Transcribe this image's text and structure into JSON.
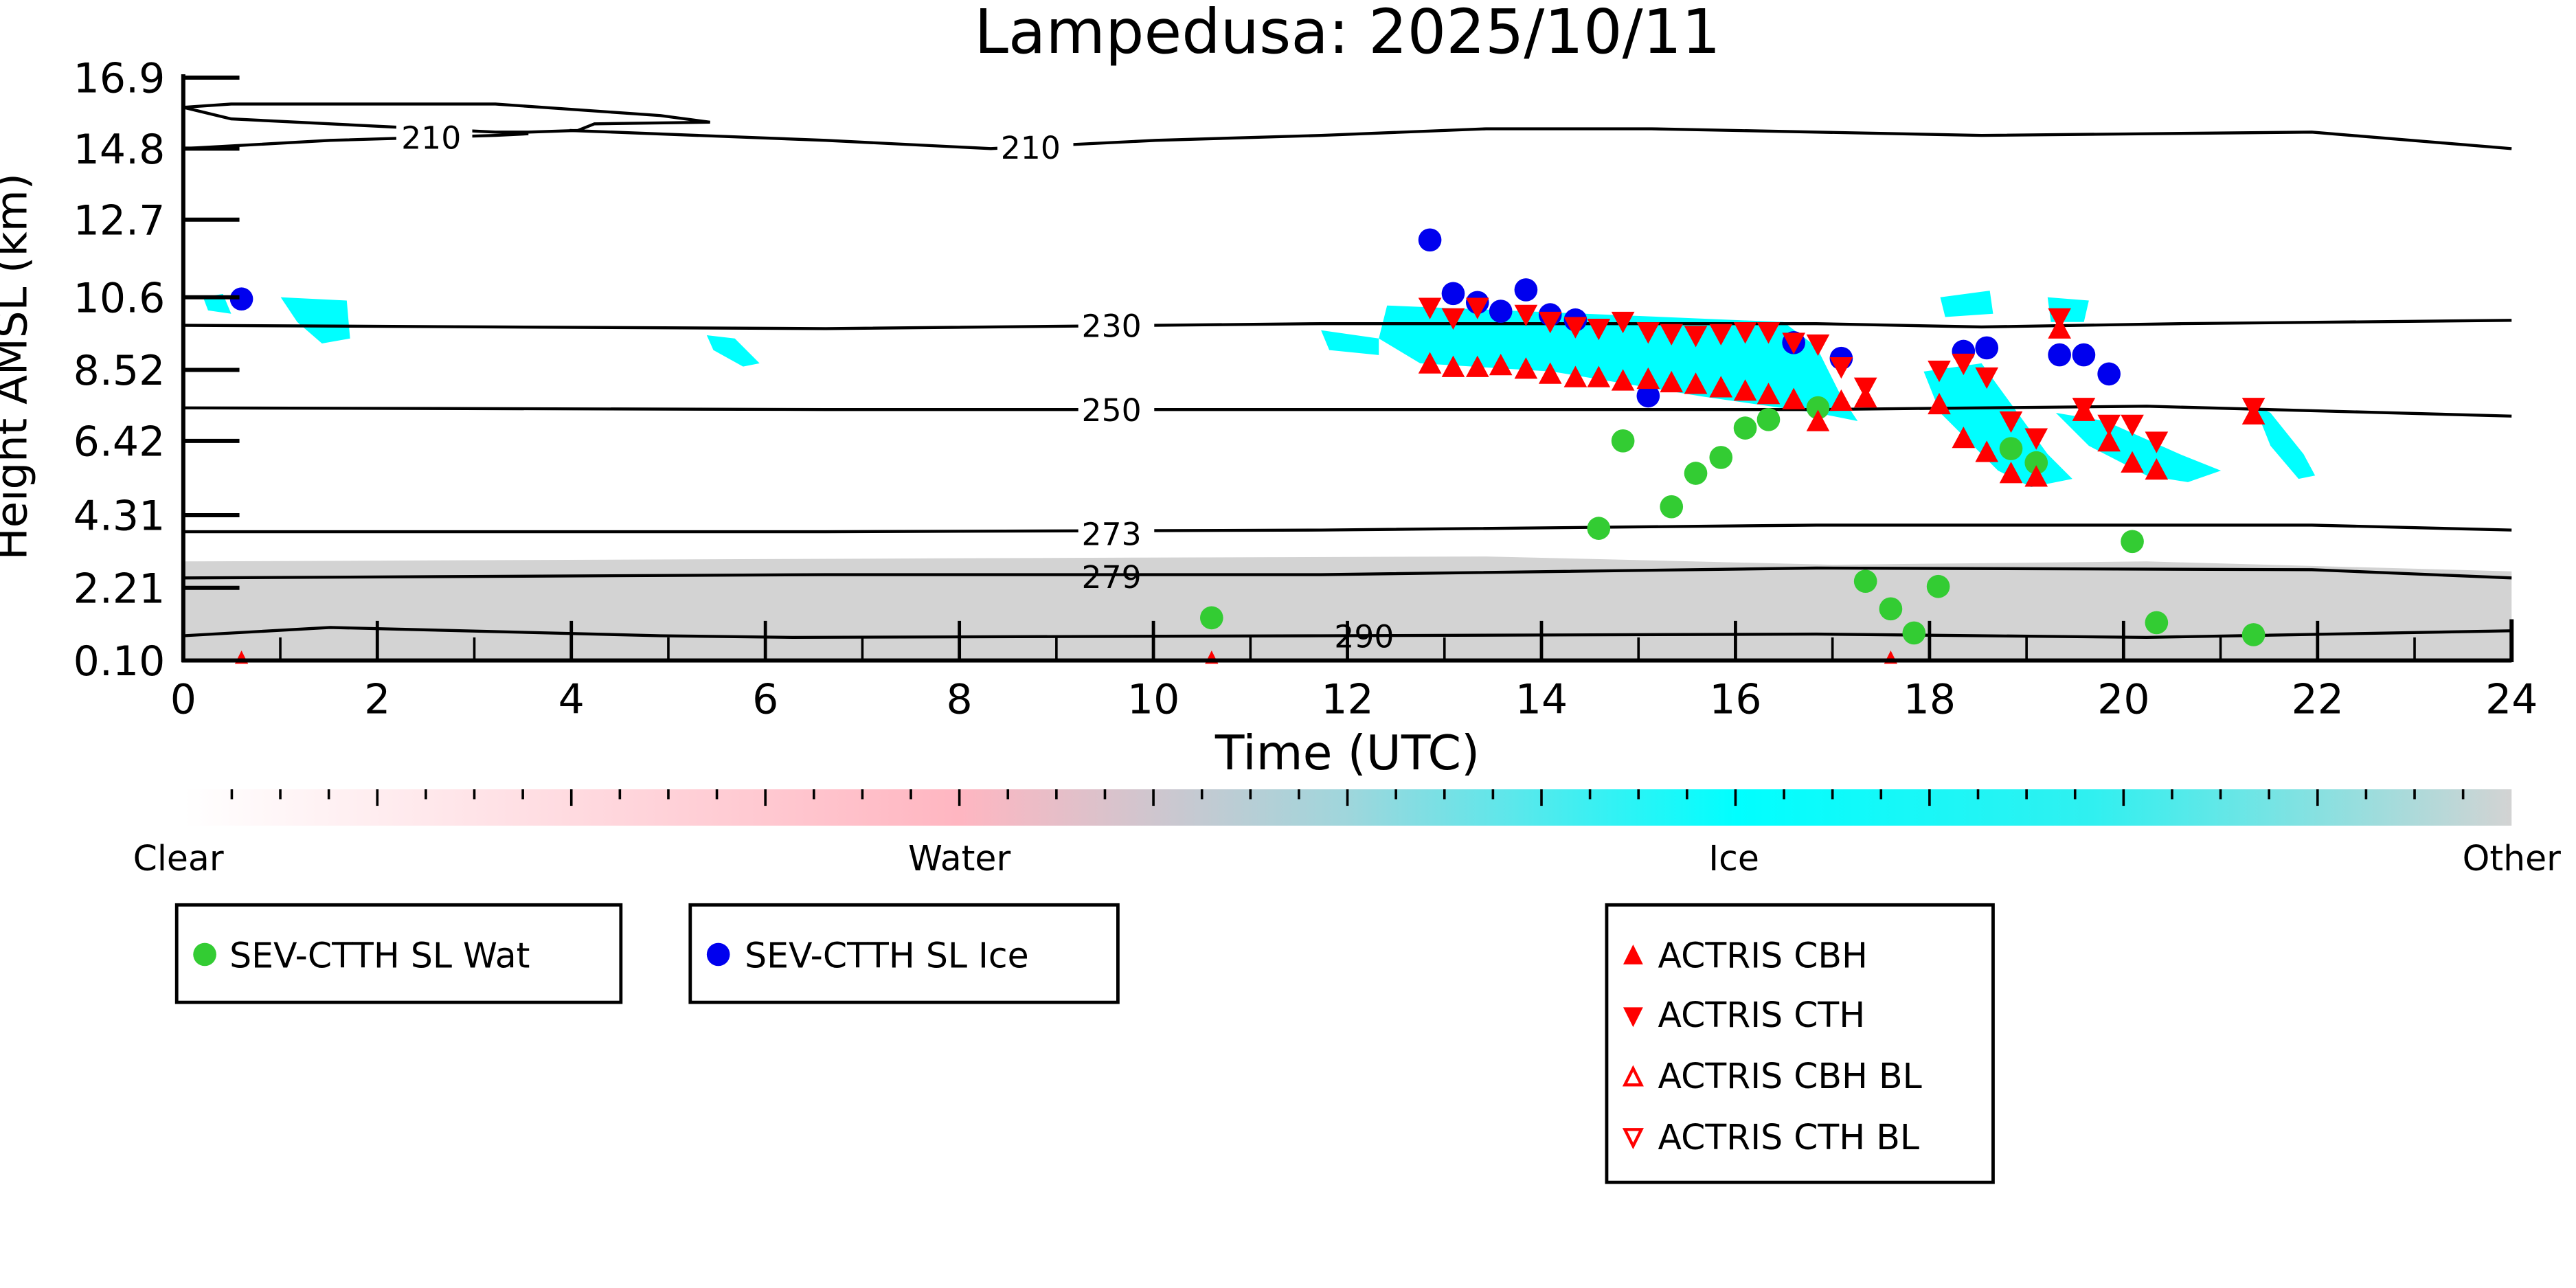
{
  "chart_data": {
    "type": "scatter",
    "title": "Lampedusa: 2025/10/11",
    "xlabel": "Time (UTC)",
    "ylabel": "Height AMSL (km)",
    "xlim": [
      0,
      24
    ],
    "xticks": [
      "0",
      "2",
      "4",
      "6",
      "8",
      "10",
      "12",
      "14",
      "16",
      "18",
      "20",
      "22",
      "24"
    ],
    "yticks": [
      "16.9",
      "14.8",
      "12.7",
      "10.6",
      "8.52",
      "6.42",
      "4.31",
      "2.21",
      "0.10"
    ],
    "ytick_values": [
      16.9,
      14.8,
      12.7,
      10.6,
      8.52,
      6.42,
      4.31,
      2.21,
      0.1
    ],
    "contour_labels": [
      "210",
      "210",
      "230",
      "250",
      "273",
      "279",
      "290"
    ],
    "colorbar": {
      "labels": [
        "Clear",
        "Water",
        "Ice",
        "Other"
      ],
      "colors": [
        "#ffffff",
        "#ffb6c1",
        "#00ffff",
        "#d3d3d3"
      ]
    },
    "series": [
      {
        "name": "SEV-CTTH SL Wat",
        "marker": "circle",
        "color": "#33cc33",
        "x": [
          10.6,
          14.59,
          14.84,
          15.34,
          15.59,
          15.85,
          16.1,
          16.34,
          16.85,
          17.34,
          17.6,
          17.84,
          18.09,
          18.84,
          19.1,
          20.09,
          20.34,
          21.34
        ],
        "y": [
          1.34,
          3.93,
          6.42,
          4.55,
          5.5,
          5.95,
          6.8,
          7.05,
          7.4,
          2.4,
          1.6,
          0.9,
          2.25,
          6.2,
          5.8,
          3.55,
          1.2,
          0.85
        ]
      },
      {
        "name": "SEV-CTTH SL Ice",
        "marker": "circle",
        "color": "#0000ee",
        "x": [
          0.6,
          12.85,
          13.09,
          13.34,
          13.58,
          13.84,
          14.09,
          14.35,
          15.1,
          16.6,
          17.09,
          18.35,
          18.59,
          19.34,
          19.59,
          19.85
        ],
        "y": [
          10.55,
          12.15,
          10.7,
          10.45,
          10.2,
          10.8,
          10.1,
          9.95,
          7.75,
          9.3,
          8.85,
          9.05,
          9.15,
          8.95,
          8.95,
          8.4
        ]
      },
      {
        "name": "ACTRIS CBH",
        "marker": "triangle-up",
        "color": "#ff0000",
        "x": [
          12.85,
          13.09,
          13.34,
          13.58,
          13.84,
          14.09,
          14.35,
          14.59,
          14.84,
          15.1,
          15.34,
          15.59,
          15.85,
          16.1,
          16.34,
          16.6,
          16.85,
          17.09,
          17.34,
          18.1,
          18.35,
          18.59,
          18.84,
          19.1,
          19.34,
          19.59,
          19.85,
          20.09,
          20.34,
          21.34
        ],
        "y": [
          8.7,
          8.6,
          8.6,
          8.65,
          8.55,
          8.4,
          8.3,
          8.3,
          8.2,
          8.25,
          8.15,
          8.1,
          8.0,
          7.9,
          7.8,
          7.65,
          7.0,
          7.6,
          7.7,
          7.5,
          6.5,
          6.1,
          5.5,
          5.4,
          9.7,
          7.3,
          6.4,
          5.8,
          5.6,
          7.2
        ]
      },
      {
        "name": "ACTRIS CTH",
        "marker": "triangle-down",
        "color": "#ff0000",
        "x": [
          12.85,
          13.09,
          13.34,
          13.84,
          14.09,
          14.35,
          14.59,
          14.84,
          15.1,
          15.34,
          15.59,
          15.85,
          16.1,
          16.34,
          16.6,
          16.85,
          17.09,
          17.34,
          18.1,
          18.35,
          18.59,
          18.84,
          19.1,
          19.34,
          19.59,
          19.85,
          20.09,
          20.34,
          21.34
        ],
        "y": [
          10.3,
          10.0,
          10.3,
          10.1,
          9.9,
          9.75,
          9.7,
          9.9,
          9.6,
          9.55,
          9.5,
          9.55,
          9.6,
          9.6,
          9.3,
          9.25,
          8.6,
          8.0,
          8.5,
          8.7,
          8.3,
          7.0,
          6.5,
          10.0,
          7.4,
          6.9,
          6.9,
          6.4,
          7.4
        ]
      },
      {
        "name": "ACTRIS CBH BL",
        "marker": "triangle-up-open",
        "color": "#ff0000",
        "x": [
          0.6,
          10.6,
          17.6
        ],
        "y": [
          0.15,
          0.15,
          0.15
        ]
      },
      {
        "name": "ACTRIS CTH BL",
        "marker": "triangle-down-open",
        "color": "#ff0000",
        "x": [],
        "y": []
      }
    ]
  }
}
